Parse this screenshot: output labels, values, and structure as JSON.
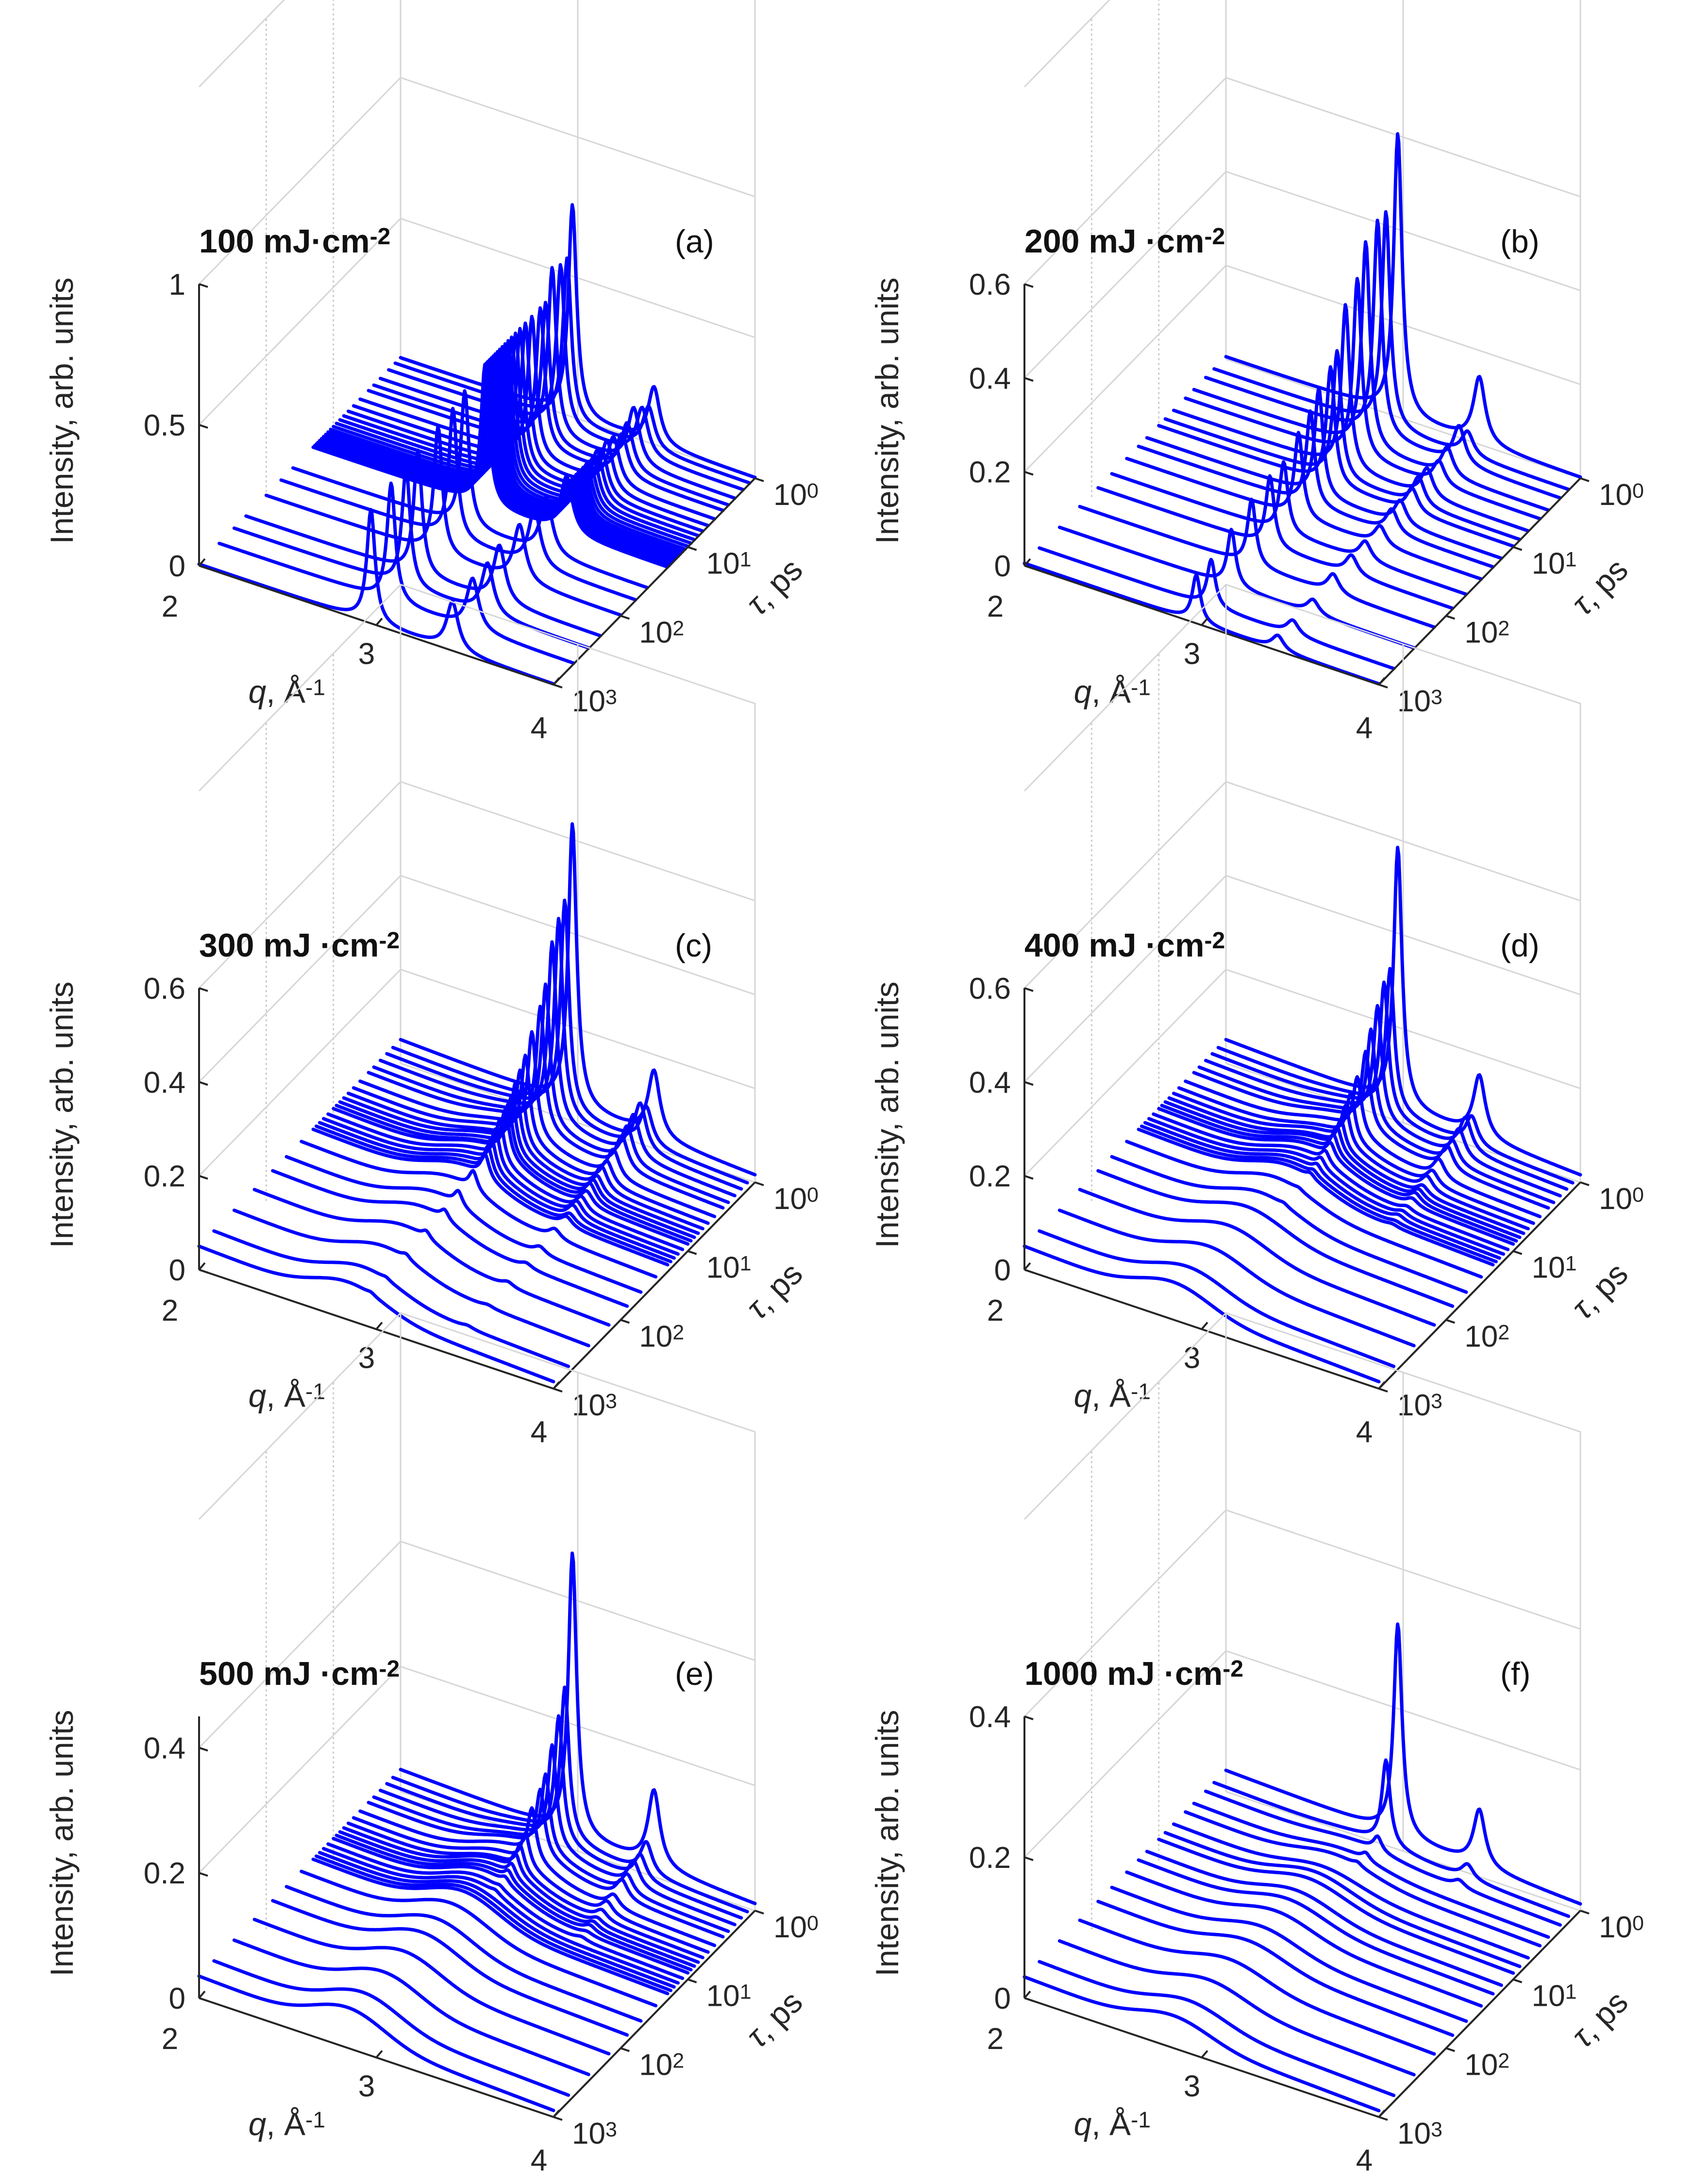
{
  "figure": {
    "panels": [
      {
        "panel_label": "(a)",
        "fluence_label": "100 mJ·cm",
        "fluence_exp": "-2"
      },
      {
        "panel_label": "(b)",
        "fluence_label": "200 mJ ·cm",
        "fluence_exp": "-2"
      },
      {
        "panel_label": "(c)",
        "fluence_label": "300 mJ ·cm",
        "fluence_exp": "-2"
      },
      {
        "panel_label": "(d)",
        "fluence_label": "400 mJ ·cm",
        "fluence_exp": "-2"
      },
      {
        "panel_label": "(e)",
        "fluence_label": "500 mJ ·cm",
        "fluence_exp": "-2"
      },
      {
        "panel_label": "(f)",
        "fluence_label": "1000 mJ ·cm",
        "fluence_exp": "-2"
      }
    ],
    "axis_titles": {
      "z": "Intensity, arb. units",
      "x_symbol": "q",
      "x_rest": ", Å",
      "x_exp": "-1",
      "y_symbol": "τ",
      "y_rest": ", ps"
    },
    "x_tick_labels": [
      "2",
      "3",
      "4"
    ],
    "y_tick_labels": [
      {
        "base": "10",
        "exp": "0"
      },
      {
        "base": "10",
        "exp": "1"
      },
      {
        "base": "10",
        "exp": "2"
      },
      {
        "base": "10",
        "exp": "3"
      }
    ],
    "trace_color": "#0000ff"
  },
  "chart_data": [
    {
      "type": "line",
      "title": "100 mJ·cm-2",
      "panel": "(a)",
      "xlabel": "q, Å-1",
      "ylabel": "τ, ps",
      "zlabel": "Intensity, arb. units",
      "xlim": [
        2,
        4
      ],
      "ylim": [
        1,
        1000
      ],
      "y_scale": "log",
      "zlim": [
        0,
        1
      ],
      "z_ticks": [
        0,
        0.5,
        1
      ],
      "z_tick_labels": [
        "0",
        "0.5",
        "1"
      ],
      "grid": true,
      "peak_positions_q": [
        2.97,
        3.43
      ],
      "peak_widths_q": [
        0.028,
        0.04
      ],
      "delays_ps": [
        1.0,
        1.2,
        1.5,
        2.0,
        2.5,
        3.0,
        4.0,
        5.0,
        6.0,
        7.0,
        8.0,
        9.0,
        10.0,
        11.0,
        12.0,
        13.0,
        14.0,
        15.0,
        16.0,
        17.0,
        18.0,
        19.0,
        20.0,
        40.0,
        60.0,
        100.0,
        200.0,
        300.0,
        500.0,
        1000.0
      ],
      "peak1_heights": [
        0.75,
        0.58,
        0.58,
        0.6,
        0.5,
        0.5,
        0.5,
        0.5,
        0.5,
        0.5,
        0.5,
        0.5,
        0.5,
        0.5,
        0.5,
        0.5,
        0.5,
        0.5,
        0.5,
        0.5,
        0.5,
        0.5,
        0.5,
        0.48,
        0.46,
        0.45,
        0.44,
        0.42,
        0.42,
        0.4
      ],
      "peak2_heights": [
        0.2,
        0.15,
        0.17,
        0.2,
        0.17,
        0.15,
        0.17,
        0.18,
        0.17,
        0.18,
        0.17,
        0.17,
        0.17,
        0.17,
        0.17,
        0.17,
        0.17,
        0.17,
        0.17,
        0.17,
        0.17,
        0.17,
        0.2,
        0.2,
        0.2,
        0.2,
        0.2,
        0.18,
        0.18,
        0.17
      ],
      "background_levels": [
        0.005,
        0.005,
        0.005,
        0.005,
        0.005,
        0.005,
        0.005,
        0.005,
        0.005,
        0.005,
        0.005,
        0.005,
        0.005,
        0.005,
        0.005,
        0.005,
        0.005,
        0.005,
        0.005,
        0.005,
        0.005,
        0.005,
        0.005,
        0.005,
        0.005,
        0.005,
        0.005,
        0.005,
        0.005,
        0.005
      ],
      "liquid_heights": [
        0,
        0,
        0,
        0,
        0,
        0,
        0,
        0,
        0,
        0,
        0,
        0,
        0,
        0,
        0,
        0,
        0,
        0,
        0,
        0,
        0,
        0,
        0,
        0,
        0,
        0,
        0,
        0,
        0,
        0
      ]
    },
    {
      "type": "line",
      "title": "200 mJ ·cm-2",
      "panel": "(b)",
      "xlabel": "q, Å-1",
      "ylabel": "τ, ps",
      "zlabel": "Intensity, arb. units",
      "xlim": [
        2,
        4
      ],
      "ylim": [
        1,
        1000
      ],
      "y_scale": "log",
      "zlim": [
        0,
        0.6
      ],
      "z_ticks": [
        0,
        0.2,
        0.4,
        0.6
      ],
      "z_tick_labels": [
        "0",
        "0.2",
        "0.4",
        "0.6"
      ],
      "grid": true,
      "peak_positions_q": [
        2.97,
        3.43
      ],
      "peak_widths_q": [
        0.028,
        0.04
      ],
      "delays_ps": [
        1.0,
        1.5,
        2.0,
        3.0,
        4.0,
        6.0,
        8.0,
        10.0,
        15.0,
        20.0,
        30.0,
        50.0,
        80.0,
        150.0,
        300.0,
        600.0,
        1000.0
      ],
      "peak1_heights": [
        0.6,
        0.46,
        0.46,
        0.44,
        0.38,
        0.35,
        0.27,
        0.25,
        0.23,
        0.2,
        0.18,
        0.15,
        0.15,
        0.14,
        0.12,
        0.1,
        0.1
      ],
      "peak2_heights": [
        0.14,
        0.05,
        0.08,
        0.06,
        0.05,
        0.06,
        0.06,
        0.05,
        0.05,
        0.05,
        0.04,
        0.04,
        0.04,
        0.04,
        0.03,
        0.03,
        0.03
      ],
      "background_levels": [
        0.005,
        0.005,
        0.005,
        0.005,
        0.005,
        0.005,
        0.005,
        0.005,
        0.005,
        0.005,
        0.005,
        0.005,
        0.005,
        0.005,
        0.005,
        0.005,
        0.005
      ],
      "liquid_heights": [
        0,
        0,
        0,
        0,
        0,
        0,
        0,
        0,
        0,
        0,
        0,
        0,
        0,
        0,
        0,
        0,
        0
      ]
    },
    {
      "type": "line",
      "title": "300 mJ ·cm-2",
      "panel": "(c)",
      "xlabel": "q, Å-1",
      "ylabel": "τ, ps",
      "zlabel": "Intensity, arb. units",
      "xlim": [
        2,
        4
      ],
      "ylim": [
        1,
        1000
      ],
      "y_scale": "log",
      "zlim": [
        0,
        0.6
      ],
      "z_ticks": [
        0,
        0.2,
        0.4,
        0.6
      ],
      "z_tick_labels": [
        "0",
        "0.2",
        "0.4",
        "0.6"
      ],
      "grid": true,
      "peak_positions_q": [
        2.97,
        3.43
      ],
      "peak_widths_q": [
        0.028,
        0.04
      ],
      "delays_ps": [
        1.0,
        1.3,
        1.6,
        2.0,
        2.5,
        3.0,
        4.0,
        5.0,
        6.0,
        7.0,
        8.0,
        9.0,
        10.0,
        12.0,
        14.0,
        16.0,
        18.0,
        20.0,
        30.0,
        50.0,
        80.0,
        150.0,
        300.0,
        600.0,
        1000.0
      ],
      "peak1_heights": [
        0.6,
        0.45,
        0.42,
        0.38,
        0.3,
        0.26,
        0.22,
        0.18,
        0.16,
        0.14,
        0.12,
        0.11,
        0.1,
        0.09,
        0.08,
        0.07,
        0.06,
        0.05,
        0.04,
        0.03,
        0.02,
        0.015,
        0.01,
        0.005,
        0.005
      ],
      "peak2_heights": [
        0.14,
        0.08,
        0.1,
        0.09,
        0.08,
        0.07,
        0.06,
        0.05,
        0.05,
        0.04,
        0.04,
        0.04,
        0.03,
        0.03,
        0.03,
        0.03,
        0.02,
        0.02,
        0.02,
        0.015,
        0.01,
        0.01,
        0.005,
        0.005,
        0.0
      ],
      "background_levels": [
        0.05,
        0.05,
        0.05,
        0.05,
        0.05,
        0.05,
        0.05,
        0.05,
        0.05,
        0.05,
        0.05,
        0.05,
        0.05,
        0.05,
        0.05,
        0.05,
        0.05,
        0.05,
        0.05,
        0.05,
        0.05,
        0.05,
        0.05,
        0.05,
        0.05
      ],
      "liquid_heights": [
        0.0,
        0.005,
        0.01,
        0.015,
        0.02,
        0.025,
        0.03,
        0.035,
        0.035,
        0.04,
        0.04,
        0.04,
        0.045,
        0.045,
        0.045,
        0.045,
        0.045,
        0.045,
        0.045,
        0.045,
        0.045,
        0.045,
        0.045,
        0.045,
        0.045
      ]
    },
    {
      "type": "line",
      "title": "400 mJ ·cm-2",
      "panel": "(d)",
      "xlabel": "q, Å-1",
      "ylabel": "τ, ps",
      "zlabel": "Intensity, arb. units",
      "xlim": [
        2,
        4
      ],
      "ylim": [
        1,
        1000
      ],
      "y_scale": "log",
      "zlim": [
        0,
        0.6
      ],
      "z_ticks": [
        0,
        0.2,
        0.4,
        0.6
      ],
      "z_tick_labels": [
        "0",
        "0.2",
        "0.4",
        "0.6"
      ],
      "grid": true,
      "peak_positions_q": [
        2.97,
        3.43
      ],
      "peak_widths_q": [
        0.028,
        0.04
      ],
      "delays_ps": [
        1.0,
        1.3,
        1.6,
        2.0,
        2.5,
        3.0,
        4.0,
        5.0,
        6.0,
        7.0,
        8.0,
        9.0,
        10.0,
        12.0,
        14.0,
        16.0,
        18.0,
        20.0,
        30.0,
        50.0,
        80.0,
        150.0,
        300.0,
        600.0,
        1000.0
      ],
      "peak1_heights": [
        0.55,
        0.3,
        0.28,
        0.24,
        0.2,
        0.16,
        0.12,
        0.1,
        0.08,
        0.06,
        0.05,
        0.04,
        0.03,
        0.025,
        0.02,
        0.015,
        0.01,
        0.01,
        0.005,
        0.005,
        0.0,
        0.0,
        0.0,
        0.0,
        0.0
      ],
      "peak2_heights": [
        0.13,
        0.06,
        0.07,
        0.06,
        0.05,
        0.05,
        0.04,
        0.03,
        0.03,
        0.02,
        0.02,
        0.02,
        0.015,
        0.01,
        0.01,
        0.01,
        0.005,
        0.005,
        0.0,
        0.0,
        0.0,
        0.0,
        0.0,
        0.0,
        0.0
      ],
      "background_levels": [
        0.05,
        0.05,
        0.05,
        0.05,
        0.05,
        0.05,
        0.05,
        0.05,
        0.05,
        0.05,
        0.05,
        0.05,
        0.05,
        0.05,
        0.05,
        0.05,
        0.05,
        0.05,
        0.05,
        0.05,
        0.05,
        0.05,
        0.05,
        0.05,
        0.05
      ],
      "liquid_heights": [
        0.0,
        0.01,
        0.015,
        0.02,
        0.025,
        0.03,
        0.035,
        0.035,
        0.04,
        0.04,
        0.045,
        0.045,
        0.045,
        0.045,
        0.045,
        0.045,
        0.045,
        0.045,
        0.045,
        0.045,
        0.045,
        0.045,
        0.045,
        0.045,
        0.045
      ]
    },
    {
      "type": "line",
      "title": "500 mJ ·cm-2",
      "panel": "(e)",
      "xlabel": "q, Å-1",
      "ylabel": "τ, ps",
      "zlabel": "Intensity, arb. units",
      "xlim": [
        2,
        4
      ],
      "ylim": [
        1,
        1000
      ],
      "y_scale": "log",
      "zlim": [
        0,
        0.45
      ],
      "z_ticks": [
        0,
        0.2,
        0.4
      ],
      "z_tick_labels": [
        "0",
        "0.2",
        "0.4"
      ],
      "grid": true,
      "peak_positions_q": [
        2.97,
        3.43
      ],
      "peak_widths_q": [
        0.028,
        0.04
      ],
      "delays_ps": [
        1.0,
        1.3,
        1.6,
        2.0,
        2.5,
        3.0,
        4.0,
        5.0,
        6.0,
        7.0,
        8.0,
        9.0,
        10.0,
        12.0,
        14.0,
        16.0,
        18.0,
        20.0,
        30.0,
        50.0,
        80.0,
        150.0,
        300.0,
        600.0,
        1000.0
      ],
      "peak1_heights": [
        0.45,
        0.24,
        0.2,
        0.16,
        0.12,
        0.1,
        0.08,
        0.05,
        0.04,
        0.03,
        0.02,
        0.015,
        0.01,
        0.005,
        0.005,
        0.0,
        0.0,
        0.0,
        0.0,
        0.0,
        0.0,
        0.0,
        0.0,
        0.0,
        0.0
      ],
      "peak2_heights": [
        0.12,
        0.05,
        0.04,
        0.04,
        0.03,
        0.03,
        0.02,
        0.02,
        0.015,
        0.01,
        0.01,
        0.01,
        0.005,
        0.005,
        0.0,
        0.0,
        0.0,
        0.0,
        0.0,
        0.0,
        0.0,
        0.0,
        0.0,
        0.0,
        0.0
      ],
      "background_levels": [
        0.035,
        0.035,
        0.035,
        0.035,
        0.035,
        0.035,
        0.035,
        0.035,
        0.035,
        0.035,
        0.035,
        0.035,
        0.035,
        0.035,
        0.035,
        0.035,
        0.035,
        0.035,
        0.035,
        0.035,
        0.035,
        0.035,
        0.035,
        0.035,
        0.035
      ],
      "liquid_heights": [
        0.0,
        0.01,
        0.015,
        0.02,
        0.025,
        0.03,
        0.035,
        0.035,
        0.035,
        0.04,
        0.04,
        0.04,
        0.04,
        0.04,
        0.04,
        0.04,
        0.04,
        0.04,
        0.04,
        0.04,
        0.04,
        0.04,
        0.04,
        0.04,
        0.04
      ]
    },
    {
      "type": "line",
      "title": "1000 mJ ·cm-2",
      "panel": "(f)",
      "xlabel": "q, Å-1",
      "ylabel": "τ, ps",
      "zlabel": "Intensity, arb. units",
      "xlim": [
        2,
        4
      ],
      "ylim": [
        1,
        1000
      ],
      "y_scale": "log",
      "zlim": [
        0,
        0.4
      ],
      "z_ticks": [
        0,
        0.2,
        0.4
      ],
      "z_tick_labels": [
        "0",
        "0.2",
        "0.4"
      ],
      "grid": true,
      "peak_positions_q": [
        2.97,
        3.43
      ],
      "peak_widths_q": [
        0.028,
        0.04
      ],
      "delays_ps": [
        1.0,
        1.5,
        2.0,
        3.0,
        4.0,
        6.0,
        8.0,
        10.0,
        15.0,
        20.0,
        30.0,
        50.0,
        80.0,
        150.0,
        300.0,
        600.0,
        1000.0
      ],
      "peak1_heights": [
        0.3,
        0.12,
        0.02,
        0.01,
        0.005,
        0.0,
        0.0,
        0.0,
        0.0,
        0.0,
        0.0,
        0.0,
        0.0,
        0.0,
        0.0,
        0.0,
        0.0
      ],
      "peak2_heights": [
        0.08,
        0.02,
        0.01,
        0.0,
        0.0,
        0.0,
        0.0,
        0.0,
        0.0,
        0.0,
        0.0,
        0.0,
        0.0,
        0.0,
        0.0,
        0.0,
        0.0
      ],
      "background_levels": [
        0.03,
        0.03,
        0.03,
        0.03,
        0.03,
        0.03,
        0.03,
        0.03,
        0.03,
        0.03,
        0.03,
        0.03,
        0.03,
        0.03,
        0.03,
        0.03,
        0.03
      ],
      "liquid_heights": [
        0.0,
        0.005,
        0.01,
        0.015,
        0.02,
        0.02,
        0.025,
        0.025,
        0.025,
        0.025,
        0.025,
        0.025,
        0.025,
        0.025,
        0.025,
        0.025,
        0.025
      ]
    }
  ]
}
